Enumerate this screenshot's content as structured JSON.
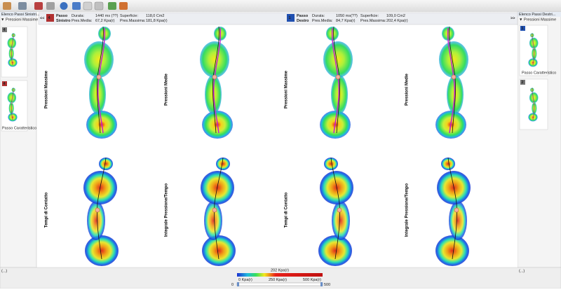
{
  "left_panel": {
    "title": "Elenco Passi Sinistri...",
    "view": "▼ Pressioni Massime",
    "steps": [
      {
        "number": "4"
      },
      {
        "number": "4",
        "label": "Passo Caratteristico"
      }
    ],
    "status": "(...)"
  },
  "right_panel": {
    "title": "Elenco Passi Destri...",
    "view": "▼ Pressioni Massime",
    "steps": [
      {
        "number": "1",
        "label": "Passo Caratteristico"
      },
      {
        "number": "2"
      }
    ],
    "status": "(...)"
  },
  "left_step": {
    "nav": "<<",
    "number": "4",
    "name": [
      "Passo",
      "Sinistro"
    ],
    "metrics": [
      {
        "label": "Durata:",
        "value": "1440 ms (??)"
      },
      {
        "label": "Superficie:",
        "value": "118,0 Cm2"
      },
      {
        "label": "Pres.Media:",
        "value": "67,2 Kpa(r)"
      },
      {
        "label": "Pres.Massima:",
        "value": "181,8 Kpa(r)"
      }
    ]
  },
  "right_step": {
    "nav": ">>",
    "number": "1",
    "name": [
      "Passo",
      "Destro"
    ],
    "metrics": [
      {
        "label": "Durata:",
        "value": "1050 ms(??)"
      },
      {
        "label": "Superficie:",
        "value": "109,0 Cm2"
      },
      {
        "label": "Pres.Media:",
        "value": "84,7 Kpa(r)"
      },
      {
        "label": "Pres.Massima:",
        "value": "202,4 Kpa(r)"
      }
    ]
  },
  "views": [
    [
      "Pressioni Massime",
      "Pressioni Medie",
      "Pressioni Massime",
      "Pressioni Medie"
    ],
    [
      "Tempi di Contatto",
      "Integrale Pressione/Tempo",
      "Tempi di Contatto",
      "Integrale Pressione/Tempo"
    ]
  ],
  "legend": {
    "current": "202 Kpa(r)",
    "min": "0 Kpa(r)",
    "mid": "250 Kpa(r)",
    "max": "500 Kpa(r)",
    "slider_min": "0",
    "slider_max": "500"
  }
}
